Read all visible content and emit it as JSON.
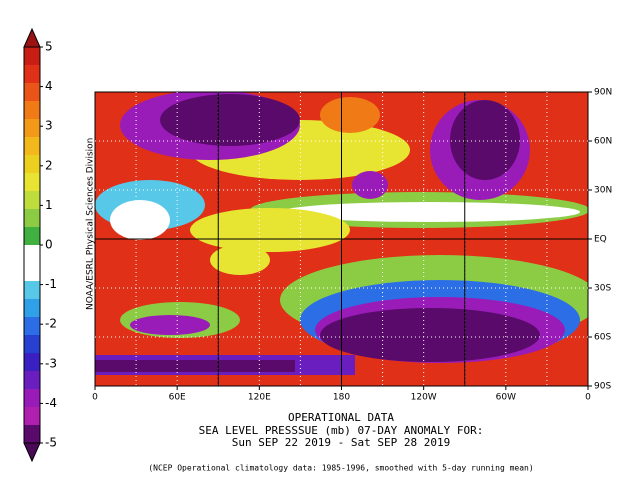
{
  "colorbar": {
    "labels": [
      5,
      4,
      3,
      2,
      1,
      0,
      -1,
      -2,
      -3,
      -4,
      -5
    ],
    "colors": [
      "#9a1212",
      "#c81e14",
      "#e03018",
      "#ea5418",
      "#f07a16",
      "#f29a18",
      "#f2b81c",
      "#ecd020",
      "#e8e432",
      "#c0dc3c",
      "#8ccc44",
      "#40b040",
      "#ffffff",
      "#ffffff",
      "#58c8e8",
      "#30a0e8",
      "#2c6ee6",
      "#2840d0",
      "#3a20c0",
      "#6a1ec0",
      "#9a1cb8",
      "#b020b0",
      "#5a0a6a",
      "#4a0858"
    ]
  },
  "map": {
    "lon_ticks": [
      0,
      {
        "value": 60,
        "label": "60E"
      },
      {
        "value": 120,
        "label": "120E"
      },
      180,
      {
        "value": 240,
        "label": "120W"
      },
      {
        "value": 300,
        "label": "60W"
      },
      {
        "value": 360,
        "label": "0"
      }
    ],
    "lat_ticks": [
      {
        "value": 90,
        "label": "90N"
      },
      {
        "value": 60,
        "label": "60N"
      },
      {
        "value": 30,
        "label": "30N"
      },
      {
        "value": 0,
        "label": "EQ"
      },
      {
        "value": -30,
        "label": "30S"
      },
      {
        "value": -60,
        "label": "60S"
      },
      {
        "value": -90,
        "label": "90S"
      }
    ]
  },
  "side_label": "NOAA/ESRL Physical Sciences Division",
  "title": {
    "line1": "OPERATIONAL DATA",
    "line2": "SEA LEVEL PRESSSUE (mb)   07-DAY ANOMALY FOR:",
    "line3": "Sun SEP 22 2019 - Sat SEP 28 2019"
  },
  "footnote": "(NCEP Operational climatology data: 1985-1996, smoothed with 5-day running mean)"
}
